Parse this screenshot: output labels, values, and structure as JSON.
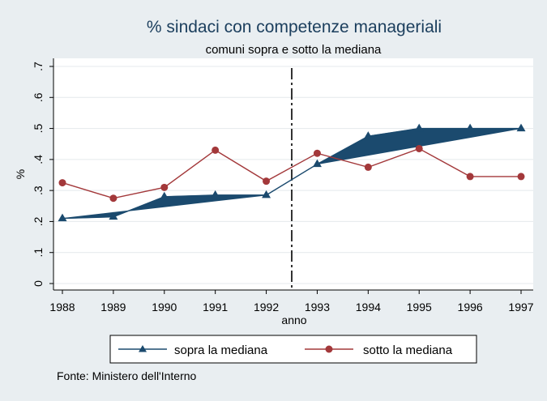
{
  "chart_data": {
    "type": "line",
    "title": "% sindaci con competenze manageriali",
    "subtitle": "comuni sopra e sotto la mediana",
    "xlabel": "anno",
    "ylabel": "%",
    "x": [
      1988,
      1989,
      1990,
      1991,
      1992,
      1993,
      1994,
      1995,
      1996,
      1997
    ],
    "x_ticks": [
      "1988",
      "1989",
      "1990",
      "1991",
      "1992",
      "1993",
      "1994",
      "1995",
      "1996",
      "1997"
    ],
    "ylim": [
      0,
      0.7
    ],
    "y_ticks": [
      0,
      0.1,
      0.2,
      0.3,
      0.4,
      0.5,
      0.6,
      0.7
    ],
    "y_tick_labels": [
      "0",
      ".1",
      ".2",
      ".3",
      ".4",
      ".5",
      ".6",
      ".7"
    ],
    "series": [
      {
        "name": "sopra la mediana",
        "color": "#1b4a6e",
        "marker": "triangle",
        "values": [
          0.21,
          0.215,
          0.28,
          0.285,
          0.285,
          0.385,
          0.475,
          0.5,
          0.5,
          0.5
        ]
      },
      {
        "name": "sotto la mediana",
        "color": "#a3383a",
        "marker": "circle",
        "values": [
          0.325,
          0.275,
          0.31,
          0.43,
          0.33,
          0.42,
          0.375,
          0.435,
          0.345,
          0.345
        ]
      }
    ],
    "area_fill_color": "#1b4a6e",
    "reference_line": {
      "x": 1992.5,
      "style": "dashed"
    },
    "grid": true,
    "legend_position": "bottom",
    "note": "Fonte: Ministero dell'Interno"
  }
}
